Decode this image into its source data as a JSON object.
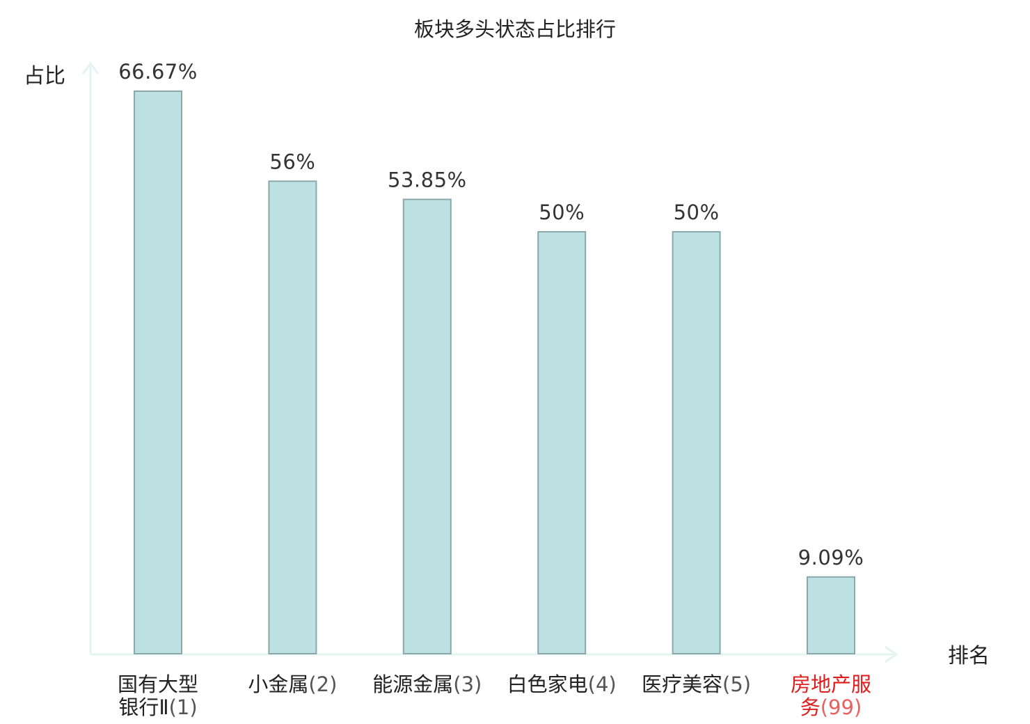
{
  "chart_data": {
    "type": "bar",
    "title": "板块多头状态占比排行",
    "xlabel": "排名",
    "ylabel": "占比",
    "ylim": [
      0,
      70
    ],
    "grid": false,
    "legend": "none",
    "categories": [
      {
        "lines": [
          "国有大型",
          "银行Ⅱ"
        ],
        "rank": "(1)",
        "highlight": false
      },
      {
        "lines": [
          "小金属"
        ],
        "rank": "(2)",
        "highlight": false
      },
      {
        "lines": [
          "能源金属"
        ],
        "rank": "(3)",
        "highlight": false
      },
      {
        "lines": [
          "白色家电"
        ],
        "rank": "(4)",
        "highlight": false
      },
      {
        "lines": [
          "医疗美容"
        ],
        "rank": "(5)",
        "highlight": false
      },
      {
        "lines": [
          "房地产服",
          "务"
        ],
        "rank": "(99)",
        "highlight": true
      }
    ],
    "values": [
      66.67,
      56,
      53.85,
      50,
      50,
      9.09
    ],
    "value_labels": [
      "66.67%",
      "56%",
      "53.85%",
      "50%",
      "50%",
      "9.09%"
    ],
    "colors": {
      "bar_fill": "#bde0e3",
      "bar_stroke": "#8aa8ab",
      "axis": "#e3f4f1",
      "highlight_text": "#e01b1b"
    }
  }
}
